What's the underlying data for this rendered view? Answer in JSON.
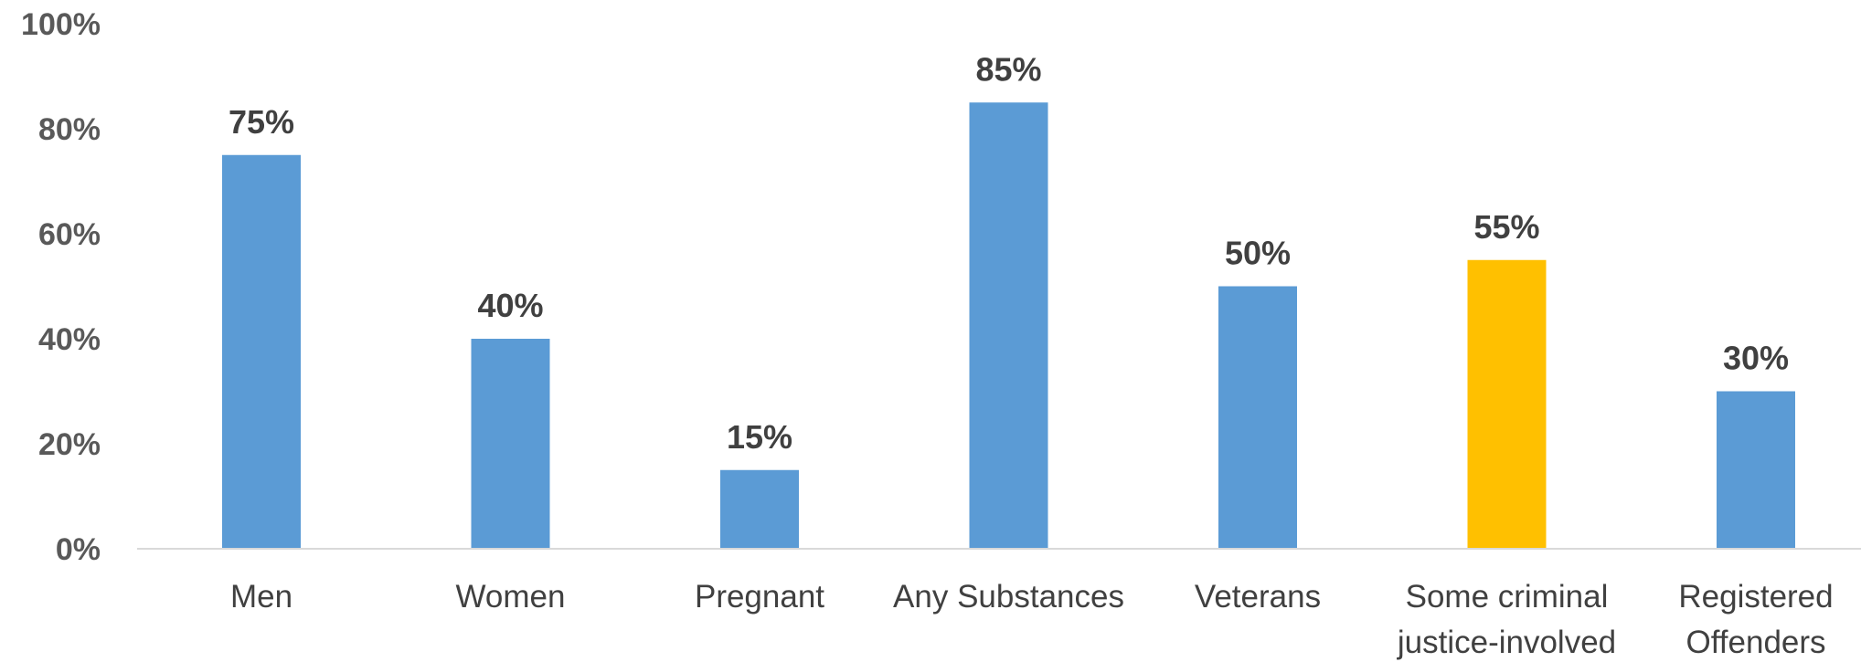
{
  "chart_data": {
    "type": "bar",
    "title": "",
    "xlabel": "",
    "ylabel": "",
    "ylim": [
      0,
      100
    ],
    "yticks": [
      "0%",
      "20%",
      "40%",
      "60%",
      "80%",
      "100%"
    ],
    "categories": [
      [
        "Men"
      ],
      [
        "Women"
      ],
      [
        "Pregnant"
      ],
      [
        "Any Substances"
      ],
      [
        "Veterans"
      ],
      [
        "Some criminal",
        "justice-involved"
      ],
      [
        "Registered",
        "Offenders"
      ]
    ],
    "values": [
      75,
      40,
      15,
      85,
      50,
      55,
      30
    ],
    "data_labels": [
      "75%",
      "40%",
      "15%",
      "85%",
      "50%",
      "55%",
      "30%"
    ],
    "colors": [
      "#5b9bd5",
      "#5b9bd5",
      "#5b9bd5",
      "#5b9bd5",
      "#5b9bd5",
      "#ffc000",
      "#5b9bd5"
    ],
    "grid": false,
    "legend": "none"
  }
}
